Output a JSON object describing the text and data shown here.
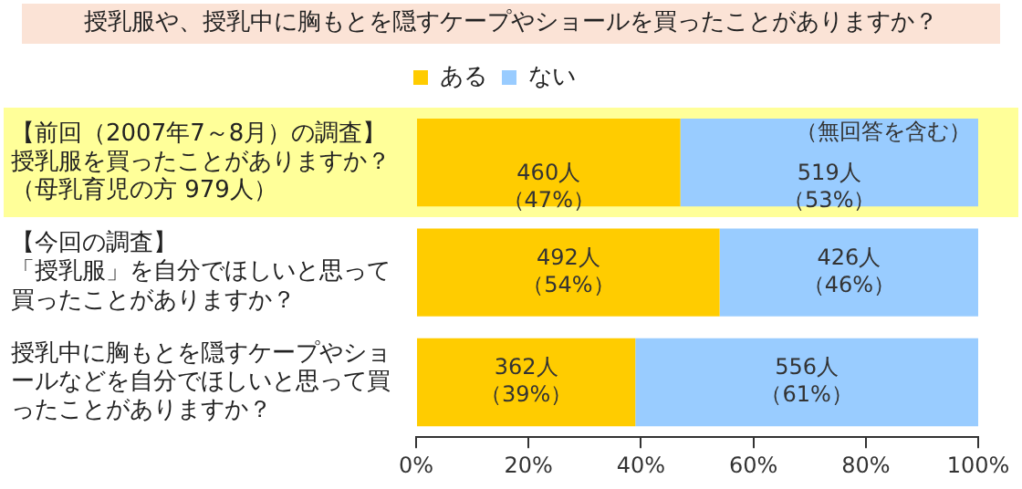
{
  "chart_data": {
    "type": "bar",
    "orientation": "horizontal",
    "stacked": true,
    "title": "授乳服や、授乳中に胸もとを隠すケープやショールを買ったことがありますか？",
    "categories": [
      "【前回（2007年7～8月）の調査】授乳服を買ったことがありますか？（母乳育児の方 979人）",
      "【今回の調査】「授乳服」を自分でほしいと思って買ったことがありますか？",
      "授乳中に胸もとを隠すケープやショールなどを自分でほしいと思って買ったことがありますか？"
    ],
    "series": [
      {
        "name": "ある",
        "color": "#ffcc00",
        "values": [
          47,
          54,
          39
        ],
        "value_labels": [
          "460人（47%）",
          "492人（54%）",
          "362人（39%）"
        ]
      },
      {
        "name": "ない",
        "color": "#99ccff",
        "values": [
          53,
          46,
          61
        ],
        "value_labels": [
          "519人（53%）",
          "426人（46%）",
          "556人（61%）"
        ]
      }
    ],
    "xlim": [
      0,
      100
    ],
    "xticks": [
      {
        "value": 0,
        "label": "0%"
      },
      {
        "value": 20,
        "label": "20%"
      },
      {
        "value": 40,
        "label": "40%"
      },
      {
        "value": 60,
        "label": "60%"
      },
      {
        "value": 80,
        "label": "80%"
      },
      {
        "value": 100,
        "label": "100%"
      }
    ],
    "annotations": [
      "（無回答を含む）"
    ],
    "legend": "top",
    "grid": false
  }
}
